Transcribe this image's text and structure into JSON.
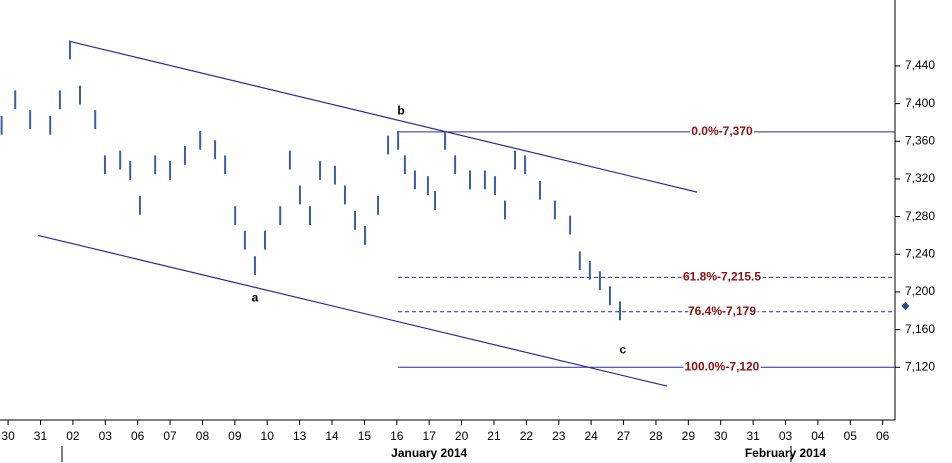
{
  "chart_data": {
    "type": "hilo",
    "x": [
      -0.2,
      0.22,
      0.68,
      1.3,
      1.6,
      1.91,
      2.22,
      2.69,
      2.99,
      3.46,
      3.77,
      4.07,
      4.54,
      5.0,
      5.46,
      5.93,
      6.39,
      6.7,
      7.01,
      7.31,
      7.62,
      7.93,
      8.4,
      8.7,
      9.01,
      9.32,
      9.63,
      10.09,
      10.4,
      10.71,
      11.02,
      11.42,
      11.73,
      12.04,
      12.25,
      12.56,
      12.96,
      13.18,
      13.49,
      13.8,
      14.26,
      14.72,
      15.03,
      15.34,
      15.65,
      15.96,
      16.42,
      16.88,
      17.35,
      17.65,
      17.96,
      18.27,
      18.58,
      18.89
    ],
    "high": [
      7387,
      7414,
      7393,
      7387,
      7414,
      7467,
      7419,
      7393,
      7345,
      7350,
      7339,
      7302,
      7345,
      7339,
      7355,
      7371,
      7361,
      7345,
      7291,
      7265,
      7238,
      7265,
      7291,
      7350,
      7313,
      7291,
      7339,
      7334,
      7313,
      7286,
      7270,
      7302,
      7366,
      7371,
      7345,
      7329,
      7323,
      7307,
      7371,
      7345,
      7329,
      7329,
      7323,
      7297,
      7350,
      7345,
      7318,
      7297,
      7281,
      7243,
      7233,
      7222,
      7206,
      7190
    ],
    "low": [
      7367,
      7394,
      7373,
      7367,
      7394,
      7447,
      7399,
      7373,
      7325,
      7330,
      7319,
      7282,
      7325,
      7319,
      7335,
      7351,
      7341,
      7325,
      7271,
      7245,
      7218,
      7245,
      7271,
      7330,
      7293,
      7271,
      7319,
      7314,
      7293,
      7266,
      7250,
      7282,
      7346,
      7351,
      7325,
      7309,
      7303,
      7287,
      7351,
      7325,
      7309,
      7309,
      7303,
      7277,
      7330,
      7325,
      7298,
      7277,
      7261,
      7223,
      7213,
      7202,
      7186,
      7170
    ],
    "color": "#3a5fa0",
    "xlim": [
      -0.25,
      27.38
    ],
    "ylim": [
      7064,
      7510
    ],
    "xticks": [
      {
        "value": 0,
        "label": "30"
      },
      {
        "value": 1,
        "label": "31"
      },
      {
        "value": 2,
        "label": "02"
      },
      {
        "value": 3,
        "label": "03"
      },
      {
        "value": 4,
        "label": "06"
      },
      {
        "value": 5,
        "label": "07"
      },
      {
        "value": 6,
        "label": "08"
      },
      {
        "value": 7,
        "label": "09"
      },
      {
        "value": 8,
        "label": "10"
      },
      {
        "value": 9,
        "label": "13"
      },
      {
        "value": 10,
        "label": "14"
      },
      {
        "value": 11,
        "label": "15"
      },
      {
        "value": 12,
        "label": "16"
      },
      {
        "value": 13,
        "label": "17"
      },
      {
        "value": 14,
        "label": "20"
      },
      {
        "value": 15,
        "label": "21"
      },
      {
        "value": 16,
        "label": "22"
      },
      {
        "value": 17,
        "label": "23"
      },
      {
        "value": 18,
        "label": "24"
      },
      {
        "value": 19,
        "label": "27"
      },
      {
        "value": 20,
        "label": "28"
      },
      {
        "value": 21,
        "label": "29"
      },
      {
        "value": 22,
        "label": "30"
      },
      {
        "value": 23,
        "label": "31"
      },
      {
        "value": 24,
        "label": "03"
      },
      {
        "value": 25,
        "label": "04"
      },
      {
        "value": 26,
        "label": "05"
      },
      {
        "value": 27,
        "label": "06"
      }
    ],
    "yticks": [
      {
        "value": 7120,
        "label": "7,120"
      },
      {
        "value": 7160,
        "label": "7,160"
      },
      {
        "value": 7200,
        "label": "7,200"
      },
      {
        "value": 7240,
        "label": "7,240"
      },
      {
        "value": 7280,
        "label": "7,280"
      },
      {
        "value": 7320,
        "label": "7,320"
      },
      {
        "value": 7360,
        "label": "7,360"
      },
      {
        "value": 7400,
        "label": "7,400"
      },
      {
        "value": 7440,
        "label": "7,440"
      }
    ],
    "months": [
      {
        "value": 13,
        "label": "January 2014"
      },
      {
        "value": 24,
        "label": "February 2014"
      }
    ],
    "last_price": {
      "x": 27.7,
      "value": 7185
    },
    "channel": [
      {
        "x": [
          1.91,
          21.27
        ],
        "values": [
          7466,
          7306
        ]
      },
      {
        "x": [
          0.93,
          20.34
        ],
        "values": [
          7260,
          7100
        ]
      }
    ],
    "levels": [
      {
        "value": 7370,
        "label": "0.0%-7,370",
        "dashed": false
      },
      {
        "value": 7215.5,
        "label": "61.8%-7,215.5",
        "dashed": true
      },
      {
        "value": 7179,
        "label": "76.4%-7,179",
        "dashed": true
      },
      {
        "value": 7120,
        "label": "100.0%-7,120",
        "dashed": false
      }
    ],
    "level_start": 12.04,
    "annotations": [
      {
        "x": 7.62,
        "value": 7193,
        "text": "a"
      },
      {
        "x": 12.13,
        "value": 7392,
        "text": "b"
      },
      {
        "x": 18.98,
        "value": 7138,
        "text": "c"
      }
    ]
  }
}
